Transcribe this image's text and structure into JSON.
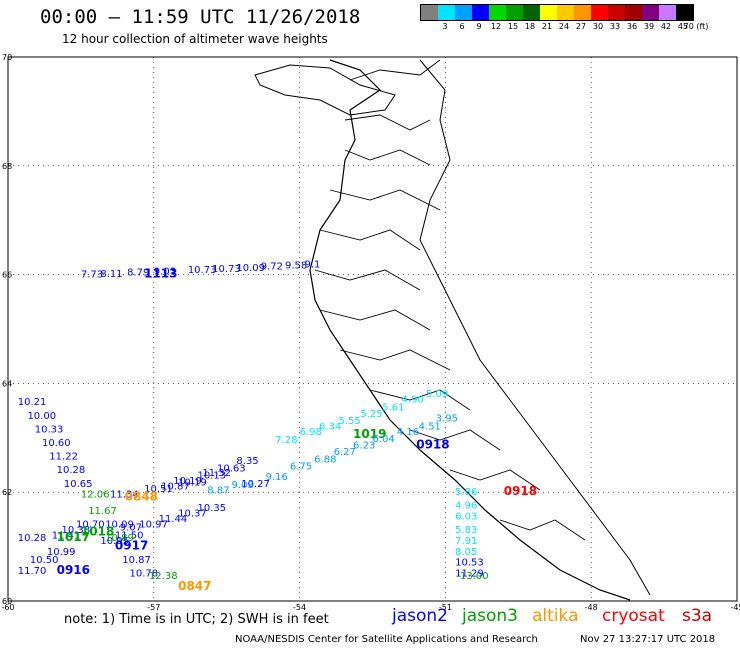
{
  "header": {
    "title": "00:00 – 11:59 UTC 11/26/2018",
    "subtitle": "12 hour collection of altimeter wave heights"
  },
  "color_scale": {
    "labels": [
      "3",
      "6",
      "9",
      "12",
      "15",
      "18",
      "21",
      "24",
      "27",
      "30",
      "33",
      "36",
      "39",
      "42",
      "45",
      "70 (ft)"
    ],
    "colors": [
      "#808080",
      "#00e5ff",
      "#00a0ff",
      "#0000ff",
      "#00d800",
      "#00a000",
      "#006400",
      "#ffff00",
      "#ffc800",
      "#ff9600",
      "#ff0000",
      "#c80000",
      "#a00000",
      "#800080",
      "#c878ff",
      "#000000"
    ]
  },
  "chart_data": {
    "type": "map",
    "lon_range": [
      -60,
      -45
    ],
    "lat_range": [
      60,
      70
    ],
    "lon_ticks": [
      "-60",
      "-57",
      "-54",
      "-51",
      "-48",
      "-45"
    ],
    "lat_ticks": [
      "60",
      "62",
      "64",
      "66",
      "68",
      "70"
    ],
    "tracks": [
      {
        "satellite": "jason2",
        "time": "1113",
        "color": "#0000ff",
        "time_lon": -57.2,
        "time_lat": 65.95,
        "points": [
          {
            "lon": -58.5,
            "lat": 65.95,
            "v": "7.73"
          },
          {
            "lon": -58.1,
            "lat": 65.96,
            "v": "8.11"
          },
          {
            "lon": -57.55,
            "lat": 65.98,
            "v": "8.79"
          },
          {
            "lon": -57.0,
            "lat": 66.0,
            "v": "9.03"
          },
          {
            "lon": -56.3,
            "lat": 66.03,
            "v": "10.73"
          },
          {
            "lon": -55.8,
            "lat": 66.05,
            "v": "10.73"
          },
          {
            "lon": -55.3,
            "lat": 66.07,
            "v": "10.09"
          },
          {
            "lon": -54.8,
            "lat": 66.09,
            "v": "9.72"
          },
          {
            "lon": -54.3,
            "lat": 66.11,
            "v": "9.58"
          },
          {
            "lon": -53.9,
            "lat": 66.13,
            "v": "9.1"
          }
        ]
      },
      {
        "satellite": "jason2",
        "time": "0916",
        "color": "#0000ff",
        "time_lon": -59.0,
        "time_lat": 60.5,
        "points": [
          {
            "lon": -59.8,
            "lat": 63.6,
            "v": "10.21"
          },
          {
            "lon": -59.6,
            "lat": 63.35,
            "v": "10.00"
          },
          {
            "lon": -59.45,
            "lat": 63.1,
            "v": "10.33"
          },
          {
            "lon": -59.3,
            "lat": 62.85,
            "v": "10.60"
          },
          {
            "lon": -59.15,
            "lat": 62.6,
            "v": "11.22"
          },
          {
            "lon": -59.0,
            "lat": 62.35,
            "v": "10.28"
          },
          {
            "lon": -58.85,
            "lat": 62.1,
            "v": "10.65"
          },
          {
            "lon": -59.8,
            "lat": 61.1,
            "v": "10.28"
          },
          {
            "lon": -59.55,
            "lat": 60.7,
            "v": "10.50"
          },
          {
            "lon": -59.8,
            "lat": 60.5,
            "v": "11.70"
          },
          {
            "lon": -59.2,
            "lat": 60.85,
            "v": "10.99"
          }
        ]
      },
      {
        "satellite": "jason2",
        "time": "0917",
        "color": "#0000ff",
        "time_lon": -57.8,
        "time_lat": 60.95,
        "points": [
          {
            "lon": -57.9,
            "lat": 61.9,
            "v": "11.34"
          },
          {
            "lon": -58.0,
            "lat": 61.35,
            "v": "10.09"
          },
          {
            "lon": -58.1,
            "lat": 61.05,
            "v": "10.95"
          },
          {
            "lon": -57.8,
            "lat": 61.15,
            "v": "11.50"
          },
          {
            "lon": -57.65,
            "lat": 60.7,
            "v": "10.87"
          },
          {
            "lon": -57.5,
            "lat": 60.45,
            "v": "10.78"
          }
        ]
      },
      {
        "satellite": "jason2",
        "time": "0918",
        "color": "#0000ff",
        "time_lon": -51.6,
        "time_lat": 62.8,
        "points": [
          {
            "lon": -57.2,
            "lat": 62.0,
            "v": "10.51"
          },
          {
            "lon": -56.85,
            "lat": 62.05,
            "v": "10.87"
          },
          {
            "lon": -56.5,
            "lat": 62.12,
            "v": "10.19"
          },
          {
            "lon": -56.1,
            "lat": 62.25,
            "v": "10.13"
          },
          {
            "lon": -55.7,
            "lat": 62.38,
            "v": "10.63"
          },
          {
            "lon": -55.3,
            "lat": 62.52,
            "v": "8.35"
          },
          {
            "lon": -57.3,
            "lat": 61.35,
            "v": "10.97"
          },
          {
            "lon": -56.9,
            "lat": 61.45,
            "v": "11.44"
          },
          {
            "lon": -56.5,
            "lat": 61.55,
            "v": "10.37"
          },
          {
            "lon": -56.1,
            "lat": 61.65,
            "v": "10.35"
          },
          {
            "lon": -55.2,
            "lat": 62.1,
            "v": "10.27"
          },
          {
            "lon": -58.6,
            "lat": 61.35,
            "v": "10.70"
          },
          {
            "lon": -59.1,
            "lat": 61.15,
            "v": "11.41"
          },
          {
            "lon": -58.9,
            "lat": 61.25,
            "v": "10.38"
          },
          {
            "lon": -57.7,
            "lat": 61.3,
            "v": "9.07"
          }
        ]
      },
      {
        "satellite": "jason3",
        "time": "1017",
        "color": "#00a000",
        "time_lon": -59.0,
        "time_lat": 61.1,
        "points": [
          {
            "lon": -58.5,
            "lat": 61.9,
            "v": "12.06"
          },
          {
            "lon": -58.35,
            "lat": 61.6,
            "v": "11.67"
          },
          {
            "lon": -58.0,
            "lat": 61.1,
            "v": "10.89"
          }
        ]
      },
      {
        "satellite": "jason3",
        "time": "1018",
        "color": "#00a000",
        "time_lon": -58.5,
        "time_lat": 61.2,
        "points": []
      },
      {
        "satellite": "jason3",
        "time": "1019",
        "color": "#00a000",
        "time_lon": -52.9,
        "time_lat": 63.0,
        "points": [
          {
            "lon": -57.1,
            "lat": 60.4,
            "v": "12.38"
          },
          {
            "lon": -50.7,
            "lat": 60.4,
            "v": "13.00"
          }
        ]
      },
      {
        "satellite": "jason2-cyan",
        "time": "",
        "color": "#00a0ff",
        "time_lon": 0,
        "time_lat": 0,
        "points": [
          {
            "lon": -55.9,
            "lat": 61.98,
            "v": "8.87"
          },
          {
            "lon": -55.4,
            "lat": 62.08,
            "v": "9.03"
          },
          {
            "lon": -54.7,
            "lat": 62.22,
            "v": "9.16"
          },
          {
            "lon": -54.2,
            "lat": 62.42,
            "v": "6.75"
          },
          {
            "lon": -53.7,
            "lat": 62.55,
            "v": "6.88"
          },
          {
            "lon": -53.3,
            "lat": 62.68,
            "v": "6.27"
          },
          {
            "lon": -52.9,
            "lat": 62.8,
            "v": "6.23"
          },
          {
            "lon": -52.5,
            "lat": 62.92,
            "v": "6.04"
          },
          {
            "lon": -52.0,
            "lat": 63.05,
            "v": "4.16"
          },
          {
            "lon": -51.55,
            "lat": 63.15,
            "v": "4.51"
          },
          {
            "lon": -51.2,
            "lat": 63.3,
            "v": "3.95"
          }
        ]
      },
      {
        "satellite": "jason3-cyan",
        "time": "",
        "color": "#00e5ff",
        "time_lon": 0,
        "time_lat": 0,
        "points": [
          {
            "lon": -54.5,
            "lat": 62.9,
            "v": "7.28"
          },
          {
            "lon": -54.0,
            "lat": 63.05,
            "v": "6.98"
          },
          {
            "lon": -53.6,
            "lat": 63.15,
            "v": "6.34"
          },
          {
            "lon": -53.2,
            "lat": 63.25,
            "v": "5.55"
          },
          {
            "lon": -52.75,
            "lat": 63.38,
            "v": "5.25"
          },
          {
            "lon": -52.3,
            "lat": 63.5,
            "v": "5.61"
          },
          {
            "lon": -51.9,
            "lat": 63.65,
            "v": "4.90"
          },
          {
            "lon": -51.4,
            "lat": 63.75,
            "v": "5.09"
          },
          {
            "lon": -50.8,
            "lat": 61.95,
            "v": "5.86"
          },
          {
            "lon": -50.8,
            "lat": 61.7,
            "v": "4.96"
          },
          {
            "lon": -50.8,
            "lat": 61.5,
            "v": "6.03"
          },
          {
            "lon": -50.8,
            "lat": 61.25,
            "v": "5.83"
          },
          {
            "lon": -50.8,
            "lat": 61.05,
            "v": "7.91"
          },
          {
            "lon": -50.8,
            "lat": 60.85,
            "v": "8.05"
          }
        ]
      },
      {
        "satellite": "jason2-blue",
        "time": "",
        "color": "#0000ff",
        "time_lon": 0,
        "time_lat": 0,
        "points": [
          {
            "lon": -56.6,
            "lat": 62.15,
            "v": "10.19"
          },
          {
            "lon": -50.8,
            "lat": 60.65,
            "v": "10.53"
          },
          {
            "lon": -50.8,
            "lat": 60.45,
            "v": "11.29"
          },
          {
            "lon": -56.0,
            "lat": 62.3,
            "v": "11.32"
          }
        ]
      },
      {
        "satellite": "altika",
        "time": "0848",
        "color": "#ff9600",
        "time_lon": -57.6,
        "time_lat": 61.85,
        "points": []
      },
      {
        "satellite": "altika",
        "time": "0847",
        "color": "#ff9600",
        "time_lon": -56.5,
        "time_lat": 60.2,
        "points": []
      },
      {
        "satellite": "cryosat",
        "time": "0918",
        "color": "#ff0000",
        "time_lon": -49.8,
        "time_lat": 61.95,
        "points": []
      }
    ]
  },
  "footer": {
    "note": "note: 1) Time is in UTC; 2) SWH is in feet",
    "legend": [
      {
        "label": "jason2",
        "color": "#0000ff"
      },
      {
        "label": "jason3",
        "color": "#00a000"
      },
      {
        "label": "altika",
        "color": "#ff9600"
      },
      {
        "label": "cryosat",
        "color": "#ff0000"
      },
      {
        "label": "s3a",
        "color": "#c80000"
      }
    ],
    "credit": "NOAA/NESDIS Center for Satellite Applications and Research",
    "timestamp": "Nov 27 13:27:17 UTC 2018"
  }
}
